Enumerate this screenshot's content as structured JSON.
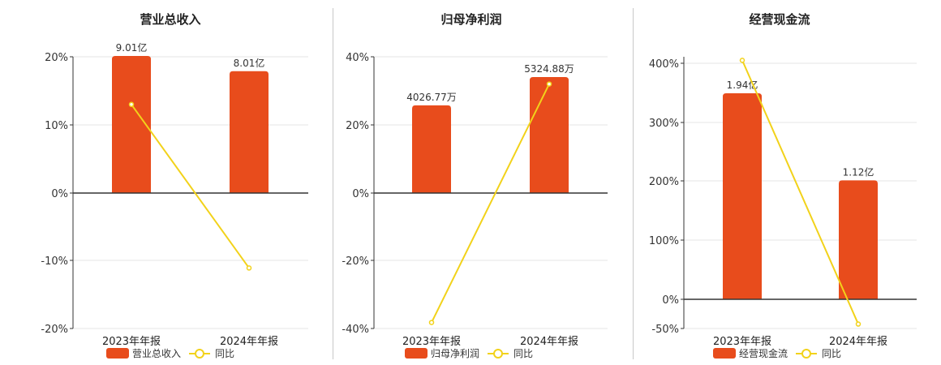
{
  "chart_data": [
    {
      "type": "bar",
      "title": "营业总收入",
      "categories": [
        "2023年年报",
        "2024年年报"
      ],
      "series": [
        {
          "name": "营业总收入",
          "kind": "bar",
          "values": [
            9.01,
            8.01
          ],
          "value_labels": [
            "9.01亿",
            "8.01亿"
          ],
          "unit": "亿"
        },
        {
          "name": "同比",
          "kind": "line",
          "values": [
            13,
            -11
          ],
          "unit": "%"
        }
      ],
      "y_axis": {
        "ticks": [
          "20%",
          "10%",
          "0%",
          "-10%",
          "-20%"
        ],
        "range": [
          -20,
          20
        ]
      },
      "grid": true,
      "legend": "bottom"
    },
    {
      "type": "bar",
      "title": "归母净利润",
      "categories": [
        "2023年年报",
        "2024年年报"
      ],
      "series": [
        {
          "name": "归母净利润",
          "kind": "bar",
          "values": [
            4026.77,
            5324.88
          ],
          "value_labels": [
            "4026.77万",
            "5324.88万"
          ],
          "unit": "万"
        },
        {
          "name": "同比",
          "kind": "line",
          "values": [
            -38,
            32
          ],
          "unit": "%"
        }
      ],
      "y_axis": {
        "ticks": [
          "40%",
          "20%",
          "0%",
          "-20%",
          "-40%"
        ],
        "range": [
          -40,
          40
        ]
      },
      "grid": true,
      "legend": "bottom"
    },
    {
      "type": "bar",
      "title": "经营现金流",
      "categories": [
        "2023年年报",
        "2024年年报"
      ],
      "series": [
        {
          "name": "经营现金流",
          "kind": "bar",
          "values": [
            1.94,
            1.12
          ],
          "value_labels": [
            "1.94亿",
            "1.12亿"
          ],
          "unit": "亿"
        },
        {
          "name": "同比",
          "kind": "line",
          "values": [
            405,
            -42
          ],
          "unit": "%"
        }
      ],
      "y_axis": {
        "ticks": [
          "400%",
          "300%",
          "200%",
          "100%",
          "0%",
          "-50%"
        ],
        "range": [
          -50,
          410
        ]
      },
      "grid": true,
      "legend": "bottom"
    }
  ],
  "colors": {
    "bar": "#e84c1c",
    "line": "#f2d21a",
    "axis": "#333333",
    "grid": "#e6e6e6"
  }
}
